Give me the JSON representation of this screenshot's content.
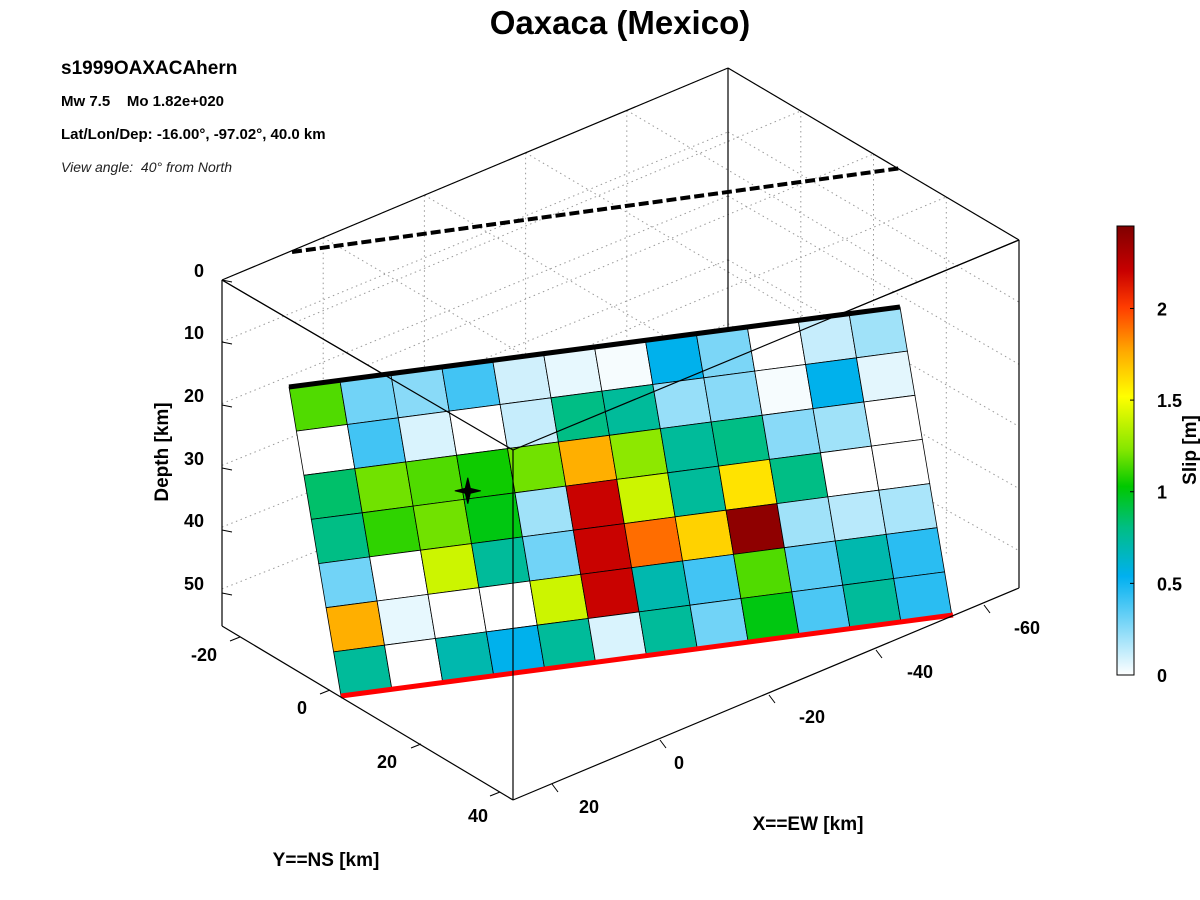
{
  "chart_data": {
    "type": "heatmap",
    "title": "Oaxaca (Mexico)",
    "event_id": "s1999OAXACAhern",
    "magnitude_line": "Mw 7.5    Mo 1.82e+020",
    "location_line": "Lat/Lon/Dep: -16.00°, -97.02°, 40.0 km",
    "view_angle_line": "View angle:  40° from North",
    "z_axis": {
      "label": "Depth [km]",
      "ticks": [
        "0",
        "10",
        "20",
        "30",
        "40",
        "50"
      ]
    },
    "y_axis": {
      "label": "Y==NS [km]",
      "ticks": [
        "-20",
        "0",
        "20",
        "40"
      ]
    },
    "x_axis": {
      "label": "X==EW [km]",
      "ticks": [
        "-60",
        "-40",
        "-20",
        "0",
        "20"
      ]
    },
    "colorbar": {
      "label": "Slip [m]",
      "ticks": [
        "0",
        "0.5",
        "1",
        "1.5",
        "2"
      ],
      "range": [
        0,
        2.45
      ]
    },
    "grid": true,
    "hypocenter": {
      "row": 2,
      "col": 3
    },
    "slip": [
      [
        1.15,
        0.3,
        0.25,
        0.4,
        0.1,
        0.05,
        0.02,
        0.55,
        0.28,
        0.0,
        0.12,
        0.2
      ],
      [
        0.0,
        0.4,
        0.08,
        0.0,
        0.12,
        0.8,
        0.75,
        0.22,
        0.25,
        0.02,
        0.55,
        0.06
      ],
      [
        0.85,
        1.2,
        1.15,
        1.05,
        1.2,
        1.75,
        1.25,
        0.75,
        0.8,
        0.25,
        0.2,
        0.0
      ],
      [
        0.8,
        1.1,
        1.2,
        1.0,
        0.2,
        2.2,
        1.4,
        0.75,
        1.6,
        0.8,
        0.0,
        0.0
      ],
      [
        0.3,
        0.0,
        1.4,
        0.75,
        0.3,
        2.2,
        1.9,
        1.65,
        2.4,
        0.2,
        0.15,
        0.18
      ],
      [
        1.75,
        0.05,
        0.0,
        0.0,
        1.4,
        2.2,
        0.7,
        0.4,
        1.15,
        0.35,
        0.7,
        0.45
      ],
      [
        0.75,
        0.0,
        0.7,
        0.55,
        0.75,
        0.08,
        0.75,
        0.3,
        1.0,
        0.38,
        0.75,
        0.45
      ]
    ]
  }
}
